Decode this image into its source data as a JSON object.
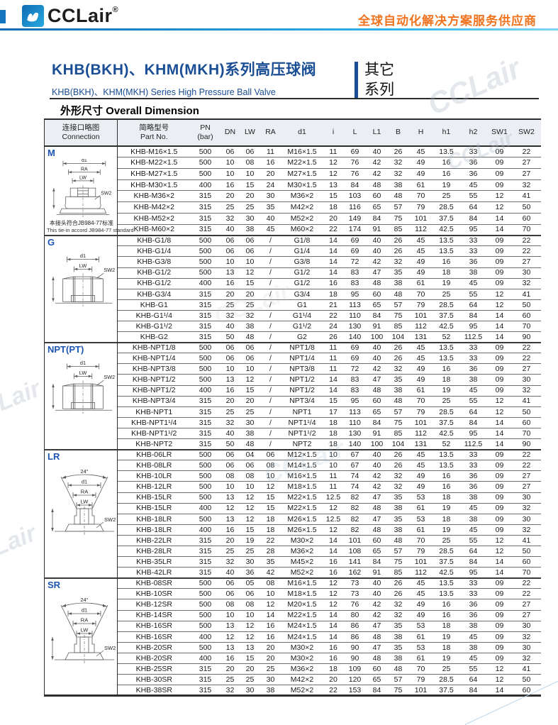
{
  "brand": {
    "logo_text": "CCLair",
    "logo_reg": "®",
    "tagline": "全球自动化解决方案服务供应商",
    "watermark": "CCLair"
  },
  "title": {
    "zh": "KHB(BKH)、KHM(MKH)系列高压球阀",
    "en": "KHB(BKH)、KHM(MKH) Series High Pressure Ball Valve"
  },
  "series_tag": {
    "line1": "其它",
    "line2": "系列"
  },
  "section_title": "外形尺寸 Overall Dimension",
  "table": {
    "headers": [
      {
        "l1": "连接口略图",
        "l2": "Connection"
      },
      {
        "l1": "简略型号",
        "l2": "Part No."
      },
      {
        "l1": "PN",
        "l2": "(bar)"
      },
      {
        "l1": "DN"
      },
      {
        "l1": "LW"
      },
      {
        "l1": "RA"
      },
      {
        "l1": "d1"
      },
      {
        "l1": "i"
      },
      {
        "l1": "L"
      },
      {
        "l1": "L1"
      },
      {
        "l1": "B"
      },
      {
        "l1": "H"
      },
      {
        "l1": "h1"
      },
      {
        "l1": "h2"
      },
      {
        "l1": "SW1"
      },
      {
        "l1": "SW2"
      }
    ],
    "sections": [
      {
        "id": "m",
        "label": "M",
        "diagram": "valve",
        "diagram_labels": {
          "d1": "d1",
          "ra": "RA",
          "lw": "LW",
          "sw2": "SW2"
        },
        "note_zh": "本接头符合JB984-77标准",
        "note_en": "This tie-in accord JB984-77 standard",
        "rows": [
          [
            "KHB-M16×1.5",
            "500",
            "06",
            "06",
            "11",
            "M16×1.5",
            "11",
            "69",
            "40",
            "26",
            "45",
            "13.5",
            "33",
            "09",
            "22"
          ],
          [
            "KHB-M22×1.5",
            "500",
            "10",
            "08",
            "16",
            "M22×1.5",
            "12",
            "76",
            "42",
            "32",
            "49",
            "16",
            "36",
            "09",
            "27"
          ],
          [
            "KHB-M27×1.5",
            "500",
            "10",
            "10",
            "20",
            "M27×1.5",
            "12",
            "76",
            "42",
            "32",
            "49",
            "16",
            "36",
            "09",
            "27"
          ],
          [
            "KHB-M30×1.5",
            "400",
            "16",
            "15",
            "24",
            "M30×1.5",
            "13",
            "84",
            "48",
            "38",
            "61",
            "19",
            "45",
            "09",
            "32"
          ],
          [
            "KHB-M36×2",
            "315",
            "20",
            "20",
            "30",
            "M36×2",
            "15",
            "103",
            "60",
            "48",
            "70",
            "25",
            "55",
            "12",
            "41"
          ],
          [
            "KHB-M42×2",
            "315",
            "25",
            "25",
            "35",
            "M42×2",
            "18",
            "116",
            "65",
            "57",
            "79",
            "28.5",
            "64",
            "12",
            "50"
          ],
          [
            "KHB-M52×2",
            "315",
            "32",
            "30",
            "40",
            "M52×2",
            "20",
            "149",
            "84",
            "75",
            "101",
            "37.5",
            "84",
            "14",
            "60"
          ],
          [
            "KHB-M60×2",
            "315",
            "40",
            "38",
            "45",
            "M60×2",
            "22",
            "174",
            "91",
            "85",
            "112",
            "42.5",
            "95",
            "14",
            "70"
          ]
        ]
      },
      {
        "id": "g",
        "label": "G",
        "diagram": "nut",
        "diagram_labels": {
          "d1": "d1",
          "lw": "LW",
          "sw2": "SW2"
        },
        "rows": [
          [
            "KHB-G1/8",
            "500",
            "06",
            "06",
            "/",
            "G1/8",
            "14",
            "69",
            "40",
            "26",
            "45",
            "13.5",
            "33",
            "09",
            "22"
          ],
          [
            "KHB-G1/4",
            "500",
            "06",
            "06",
            "/",
            "G1/4",
            "14",
            "69",
            "40",
            "26",
            "45",
            "13.5",
            "33",
            "09",
            "22"
          ],
          [
            "KHB-G3/8",
            "500",
            "10",
            "10",
            "/",
            "G3/8",
            "14",
            "72",
            "42",
            "32",
            "49",
            "16",
            "36",
            "09",
            "27"
          ],
          [
            "KHB-G1/2",
            "500",
            "13",
            "12",
            "/",
            "G1/2",
            "14",
            "83",
            "47",
            "35",
            "49",
            "18",
            "38",
            "09",
            "30"
          ],
          [
            "KHB-G1/2",
            "400",
            "16",
            "15",
            "/",
            "G1/2",
            "16",
            "83",
            "48",
            "38",
            "61",
            "19",
            "45",
            "09",
            "32"
          ],
          [
            "KHB-G3/4",
            "315",
            "20",
            "20",
            "/",
            "G3/4",
            "18",
            "95",
            "60",
            "48",
            "70",
            "25",
            "55",
            "12",
            "41"
          ],
          [
            "KHB-G1",
            "315",
            "25",
            "25",
            "/",
            "G1",
            "21",
            "113",
            "65",
            "57",
            "79",
            "28.5",
            "64",
            "12",
            "50"
          ],
          [
            "KHB-G1¹/4",
            "315",
            "32",
            "32",
            "/",
            "G1¹/4",
            "22",
            "110",
            "84",
            "75",
            "101",
            "37.5",
            "84",
            "14",
            "60"
          ],
          [
            "KHB-G1¹/2",
            "315",
            "40",
            "38",
            "/",
            "G1¹/2",
            "24",
            "130",
            "91",
            "85",
            "112",
            "42.5",
            "95",
            "14",
            "70"
          ],
          [
            "KHB-G2",
            "315",
            "50",
            "48",
            "/",
            "G2",
            "26",
            "140",
            "100",
            "104",
            "131",
            "52",
            "112.5",
            "14",
            "90"
          ]
        ]
      },
      {
        "id": "npt",
        "label": "NPT(PT)",
        "diagram": "nut",
        "diagram_labels": {
          "d1": "d1",
          "lw": "LW",
          "sw2": "SW2"
        },
        "rows": [
          [
            "KHB-NPT1/8",
            "500",
            "06",
            "06",
            "/",
            "NPT1/8",
            "11",
            "69",
            "40",
            "26",
            "45",
            "13.5",
            "33",
            "09",
            "22"
          ],
          [
            "KHB-NPT1/4",
            "500",
            "06",
            "06",
            "/",
            "NPT1/4",
            "11",
            "69",
            "40",
            "26",
            "45",
            "13.5",
            "33",
            "09",
            "22"
          ],
          [
            "KHB-NPT3/8",
            "500",
            "10",
            "10",
            "/",
            "NPT3/8",
            "11",
            "72",
            "42",
            "32",
            "49",
            "16",
            "36",
            "09",
            "27"
          ],
          [
            "KHB-NPT1/2",
            "500",
            "13",
            "12",
            "/",
            "NPT1/2",
            "14",
            "83",
            "47",
            "35",
            "49",
            "18",
            "38",
            "09",
            "30"
          ],
          [
            "KHB-NPT1/2",
            "400",
            "16",
            "15",
            "/",
            "NPT1/2",
            "14",
            "83",
            "48",
            "38",
            "61",
            "19",
            "45",
            "09",
            "32"
          ],
          [
            "KHB-NPT3/4",
            "315",
            "20",
            "20",
            "/",
            "NPT3/4",
            "15",
            "95",
            "60",
            "48",
            "70",
            "25",
            "55",
            "12",
            "41"
          ],
          [
            "KHB-NPT1",
            "315",
            "25",
            "25",
            "/",
            "NPT1",
            "17",
            "113",
            "65",
            "57",
            "79",
            "28.5",
            "64",
            "12",
            "50"
          ],
          [
            "KHB-NPT1¹/4",
            "315",
            "32",
            "30",
            "/",
            "NPT1¹/4",
            "18",
            "110",
            "84",
            "75",
            "101",
            "37.5",
            "84",
            "14",
            "60"
          ],
          [
            "KHB-NPT1¹/2",
            "315",
            "40",
            "38",
            "/",
            "NPT1¹/2",
            "18",
            "130",
            "91",
            "85",
            "112",
            "42.5",
            "95",
            "14",
            "70"
          ],
          [
            "KHB-NPT2",
            "315",
            "50",
            "48",
            "/",
            "NPT2",
            "18",
            "140",
            "100",
            "104",
            "131",
            "52",
            "112.5",
            "14",
            "90"
          ]
        ]
      },
      {
        "id": "lr",
        "label": "LR",
        "diagram": "cone",
        "diagram_labels": {
          "angle": "24°",
          "d1": "d1",
          "ra": "RA",
          "lw": "LW",
          "sw2": "SW2"
        },
        "rows": [
          [
            "KHB-06LR",
            "500",
            "06",
            "04",
            "06",
            "M12×1.5",
            "10",
            "67",
            "40",
            "26",
            "45",
            "13.5",
            "33",
            "09",
            "22"
          ],
          [
            "KHB-08LR",
            "500",
            "06",
            "06",
            "08",
            "M14×1.5",
            "10",
            "67",
            "40",
            "26",
            "45",
            "13.5",
            "33",
            "09",
            "22"
          ],
          [
            "KHB-10LR",
            "500",
            "08",
            "08",
            "10",
            "M16×1.5",
            "11",
            "74",
            "42",
            "32",
            "49",
            "16",
            "36",
            "09",
            "27"
          ],
          [
            "KHB-12LR",
            "500",
            "10",
            "10",
            "12",
            "M18×1.5",
            "11",
            "74",
            "42",
            "32",
            "49",
            "16",
            "36",
            "09",
            "27"
          ],
          [
            "KHB-15LR",
            "500",
            "13",
            "12",
            "15",
            "M22×1.5",
            "12.5",
            "82",
            "47",
            "35",
            "53",
            "18",
            "38",
            "09",
            "30"
          ],
          [
            "KHB-15LR",
            "400",
            "12",
            "12",
            "15",
            "M22×1.5",
            "12",
            "82",
            "48",
            "38",
            "61",
            "19",
            "45",
            "09",
            "32"
          ],
          [
            "KHB-18LR",
            "500",
            "13",
            "12",
            "18",
            "M26×1.5",
            "12.5",
            "82",
            "47",
            "35",
            "53",
            "18",
            "38",
            "09",
            "30"
          ],
          [
            "KHB-18LR",
            "400",
            "16",
            "15",
            "18",
            "M26×1.5",
            "12",
            "82",
            "48",
            "38",
            "61",
            "19",
            "45",
            "09",
            "32"
          ],
          [
            "KHB-22LR",
            "315",
            "20",
            "19",
            "22",
            "M30×2",
            "14",
            "101",
            "60",
            "48",
            "70",
            "25",
            "55",
            "12",
            "41"
          ],
          [
            "KHB-28LR",
            "315",
            "25",
            "25",
            "28",
            "M36×2",
            "14",
            "108",
            "65",
            "57",
            "79",
            "28.5",
            "64",
            "12",
            "50"
          ],
          [
            "KHB-35LR",
            "315",
            "32",
            "30",
            "35",
            "M45×2",
            "16",
            "141",
            "84",
            "75",
            "101",
            "37.5",
            "84",
            "14",
            "60"
          ],
          [
            "KHB-42LR",
            "315",
            "40",
            "36",
            "42",
            "M52×2",
            "16",
            "162",
            "91",
            "85",
            "112",
            "42.5",
            "95",
            "14",
            "70"
          ]
        ]
      },
      {
        "id": "sr",
        "label": "SR",
        "diagram": "cone",
        "diagram_labels": {
          "angle": "24°",
          "d1": "d1",
          "ra": "RA",
          "lw": "LW",
          "sw2": "SW2"
        },
        "rows": [
          [
            "KHB-08SR",
            "500",
            "06",
            "05",
            "08",
            "M16×1.5",
            "12",
            "73",
            "40",
            "26",
            "45",
            "13.5",
            "33",
            "09",
            "22"
          ],
          [
            "KHB-10SR",
            "500",
            "06",
            "06",
            "10",
            "M18×1.5",
            "12",
            "73",
            "40",
            "26",
            "45",
            "13.5",
            "33",
            "09",
            "22"
          ],
          [
            "KHB-12SR",
            "500",
            "08",
            "08",
            "12",
            "M20×1.5",
            "12",
            "76",
            "42",
            "32",
            "49",
            "16",
            "36",
            "09",
            "27"
          ],
          [
            "KHB-14SR",
            "500",
            "10",
            "10",
            "14",
            "M22×1.5",
            "14",
            "80",
            "42",
            "32",
            "49",
            "16",
            "36",
            "09",
            "27"
          ],
          [
            "KHB-16SR",
            "500",
            "13",
            "12",
            "16",
            "M24×1.5",
            "14",
            "86",
            "47",
            "35",
            "53",
            "18",
            "38",
            "09",
            "30"
          ],
          [
            "KHB-16SR",
            "400",
            "12",
            "12",
            "16",
            "M24×1.5",
            "14",
            "86",
            "48",
            "38",
            "61",
            "19",
            "45",
            "09",
            "32"
          ],
          [
            "KHB-20SR",
            "500",
            "13",
            "13",
            "20",
            "M30×2",
            "16",
            "90",
            "47",
            "35",
            "53",
            "18",
            "38",
            "09",
            "30"
          ],
          [
            "KHB-20SR",
            "400",
            "16",
            "15",
            "20",
            "M30×2",
            "16",
            "90",
            "48",
            "38",
            "61",
            "19",
            "45",
            "09",
            "32"
          ],
          [
            "KHB-25SR",
            "315",
            "20",
            "20",
            "25",
            "M36×2",
            "18",
            "109",
            "60",
            "48",
            "70",
            "25",
            "55",
            "12",
            "41"
          ],
          [
            "KHB-30SR",
            "315",
            "25",
            "25",
            "30",
            "M42×2",
            "20",
            "120",
            "65",
            "57",
            "79",
            "28.5",
            "64",
            "12",
            "50"
          ],
          [
            "KHB-38SR",
            "315",
            "32",
            "30",
            "38",
            "M52×2",
            "22",
            "153",
            "84",
            "75",
            "101",
            "37.5",
            "84",
            "14",
            "60"
          ]
        ]
      }
    ]
  }
}
